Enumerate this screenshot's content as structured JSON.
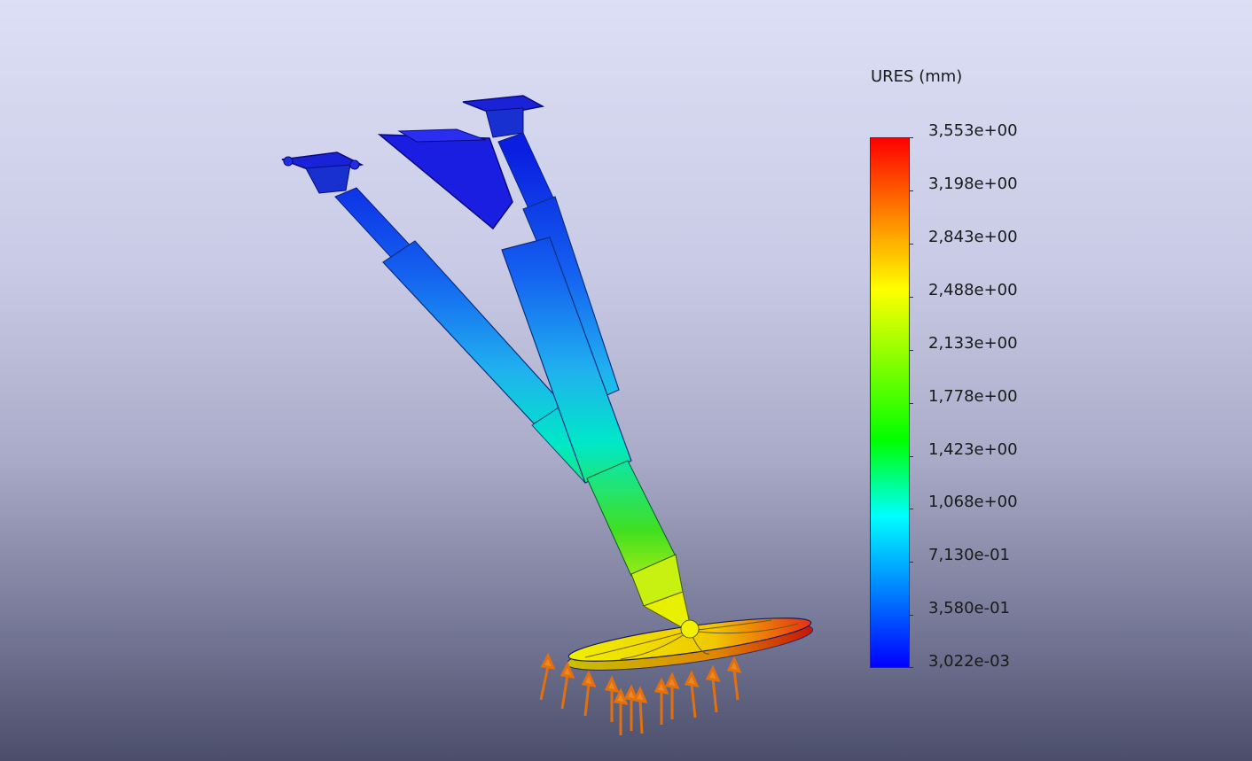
{
  "legend": {
    "title": "URES (mm)",
    "ticks": [
      "3,553e+00",
      "3,198e+00",
      "2,843e+00",
      "2,488e+00",
      "2,133e+00",
      "1,778e+00",
      "1,423e+00",
      "1,068e+00",
      "7,130e-01",
      "3,580e-01",
      "3,022e-03"
    ],
    "colors": [
      "#ff0000",
      "#ff8000",
      "#ffff00",
      "#80ff00",
      "#00ff00",
      "#00ffff",
      "#0080ff",
      "#0000ff"
    ]
  }
}
